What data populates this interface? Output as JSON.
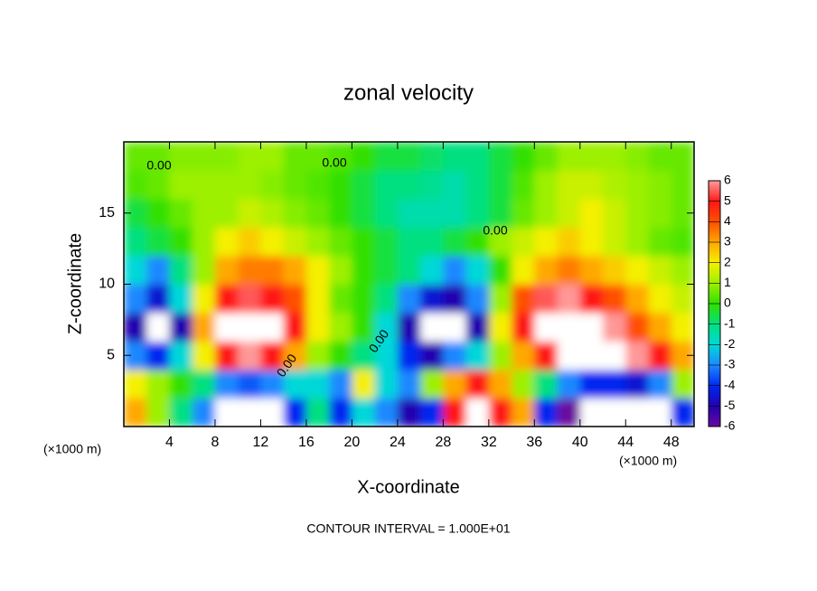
{
  "chart_data": {
    "type": "heatmap",
    "title": "zonal velocity",
    "x_label": "X-coordinate",
    "y_label": "Z-coordinate",
    "x_unit_left": "(×1000 m)",
    "x_unit_right": "(×1000 m)",
    "footer": "CONTOUR INTERVAL = 1.000E+01",
    "contour_labels": [
      "0.00",
      "0.00",
      "0.00",
      "0.00",
      "0.00"
    ],
    "xlim": [
      0,
      50
    ],
    "ylim": [
      0,
      20
    ],
    "xticks": [
      4,
      8,
      12,
      16,
      20,
      24,
      28,
      32,
      36,
      40,
      44,
      48
    ],
    "yticks": [
      5,
      10,
      15
    ],
    "x": [
      1,
      3,
      5,
      7,
      9,
      11,
      13,
      15,
      17,
      19,
      21,
      23,
      25,
      27,
      29,
      31,
      33,
      35,
      37,
      39,
      41,
      43,
      45,
      47,
      49
    ],
    "z": [
      1,
      3,
      5,
      7,
      9,
      11,
      13,
      15,
      17,
      19
    ],
    "values": [
      [
        3,
        1,
        -1,
        -3,
        -8,
        -8,
        -8,
        -4,
        -1,
        -4,
        -2,
        -3,
        -5,
        -4,
        5,
        8,
        5,
        3,
        -4,
        -6,
        -8,
        -8,
        -8,
        -8,
        -4
      ],
      [
        2,
        1,
        0,
        -1,
        -3,
        -3.5,
        -3,
        -2,
        -2,
        -3,
        2,
        -2,
        -3,
        1,
        3,
        5,
        3,
        1,
        -1,
        -3,
        -4,
        -4,
        -4.5,
        -3,
        1
      ],
      [
        -3,
        -4,
        -2,
        2,
        5,
        6,
        5,
        3,
        1,
        0,
        -1,
        -2,
        -4,
        -5,
        -3,
        -2,
        1,
        3,
        5,
        8,
        8,
        8,
        6,
        5,
        3
      ],
      [
        -5,
        -8,
        -5,
        3,
        8,
        8,
        8,
        5,
        2,
        1,
        0,
        -2,
        -5,
        -8,
        -8,
        -5,
        2,
        5,
        8,
        8,
        8,
        6,
        4,
        3,
        2
      ],
      [
        -3,
        -4.5,
        -2,
        2,
        5,
        5.5,
        5,
        4,
        2,
        0.5,
        0,
        -1,
        -3,
        -4.5,
        -5,
        -3,
        1,
        4,
        5.5,
        6,
        5,
        4,
        3,
        2,
        1.5
      ],
      [
        -2,
        -3,
        -1,
        1,
        3,
        3.5,
        3.5,
        3,
        2,
        1,
        0,
        -0.5,
        -1,
        -2,
        -3,
        -2,
        0,
        2,
        3,
        3.5,
        3,
        2.5,
        2,
        1.5,
        1
      ],
      [
        -1,
        -0.5,
        0,
        1,
        2,
        2.5,
        2,
        1.5,
        1,
        0.5,
        0,
        -0.5,
        -1,
        -1,
        -0.5,
        0,
        1,
        1.5,
        2,
        2.5,
        2,
        1.5,
        1,
        0.5,
        0.3
      ],
      [
        -0.5,
        0,
        0.5,
        1,
        1,
        1.5,
        1.2,
        0.8,
        0.5,
        0,
        -0.5,
        -1,
        -1.5,
        -1.5,
        -1.5,
        -1,
        -0.5,
        0.5,
        1,
        1.5,
        2,
        1.5,
        1,
        0.8,
        0.5
      ],
      [
        0.3,
        0.5,
        1,
        1,
        1,
        1,
        0.8,
        0.5,
        0.3,
        0,
        -0.5,
        -1,
        -1,
        -1.2,
        -1.5,
        -1,
        -0.5,
        0.3,
        1,
        1.5,
        1.5,
        1.2,
        1,
        0.8,
        0.5
      ],
      [
        0.5,
        0.5,
        0.8,
        0.8,
        0.8,
        1,
        1,
        0.5,
        0.5,
        0.3,
        0,
        -0.5,
        -0.5,
        -0.8,
        -1,
        -1,
        -0.5,
        0,
        0.5,
        1,
        1,
        1,
        0.8,
        0.5,
        0.5
      ]
    ],
    "colorbar_lim": [
      -6,
      6
    ],
    "colorbar_ticks": [
      -6,
      -5,
      -4,
      -3,
      -2,
      -1,
      0,
      1,
      2,
      3,
      4,
      5,
      6
    ],
    "colormap": [
      "#6a0a9e",
      "#2200b0",
      "#0028f0",
      "#1e88ff",
      "#00d8d8",
      "#00e080",
      "#30e000",
      "#9cf000",
      "#f4f000",
      "#ffa800",
      "#ff5000",
      "#ff1818",
      "#ff9898"
    ],
    "out_of_range_color": "#ffffff"
  }
}
